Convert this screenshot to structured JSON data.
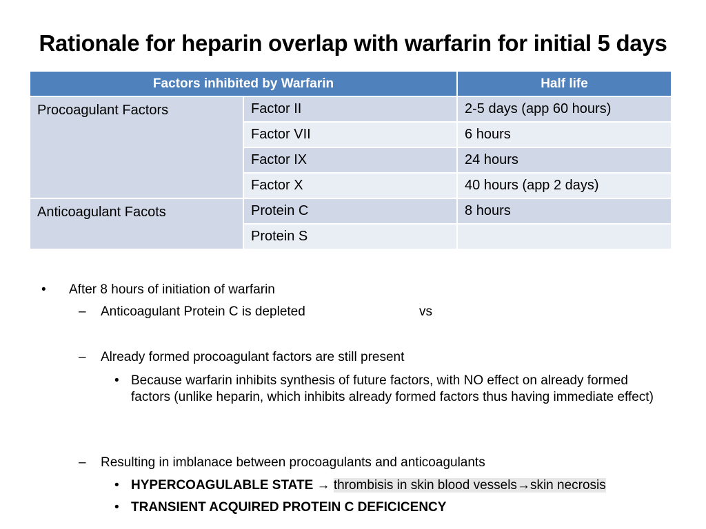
{
  "title": "Rationale for heparin overlap with warfarin for initial 5 days",
  "table": {
    "headers": [
      "Factors inhibited by Warfarin",
      "Half life"
    ],
    "groups": [
      {
        "label": "Procoagulant Factors",
        "rows": [
          {
            "factor": "Factor II",
            "half_life": " 2-5 days (app 60 hours)"
          },
          {
            "factor": "Factor VII",
            "half_life": "6 hours"
          },
          {
            "factor": "Factor IX",
            "half_life": "24 hours"
          },
          {
            "factor": "Factor X",
            "half_life": "40 hours (app 2 days)"
          }
        ]
      },
      {
        "label": "Anticoagulant Facots",
        "rows": [
          {
            "factor": "Protein C",
            "half_life": "8 hours"
          },
          {
            "factor": "Protein S",
            "half_life": ""
          }
        ]
      }
    ]
  },
  "notes": {
    "bullet_marker": "•",
    "dash_marker": "–",
    "main": "After 8 hours of initiation of warfarin",
    "sub1": "Anticoagulant Protein C is depleted",
    "sub1_vs": "vs",
    "sub2": "Already formed procoagulant factors are still present",
    "sub2_detail": "Because warfarin inhibits synthesis of future factors, with NO effect on already formed factors (unlike heparin, which inhibits already formed factors thus having immediate effect)",
    "sub3": "Resulting in imblanace between procoagulants and anticoagulants",
    "state1_bold": "HYPERCOAGULABLE STATE",
    "arrow": "→",
    "state1_part1": "thrombisis in skin blood vessels",
    "state1_part2": "skin necrosis",
    "state2": "TRANSIENT ACQUIRED PROTEIN C DEFICICENCY"
  },
  "colors": {
    "header_bg": "#4f81bd",
    "row_dark": "#d0d8e8",
    "row_light": "#e9edf4"
  }
}
